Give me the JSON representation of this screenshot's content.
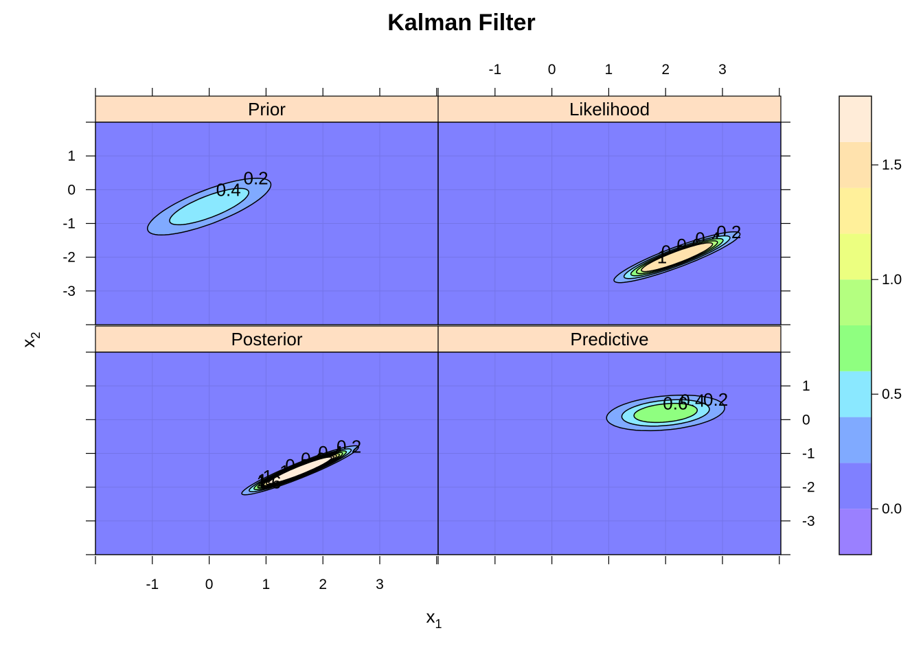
{
  "chart_data": {
    "type": "contour",
    "title": "Kalman Filter",
    "xlabel": "x",
    "xlabel_sub": "1",
    "ylabel": "x",
    "ylabel_sub": "2",
    "xlim": [
      -2,
      4
    ],
    "ylim": [
      -4,
      2
    ],
    "x_ticks": [
      -1,
      0,
      1,
      2,
      3
    ],
    "y_ticks": [
      -3,
      -2,
      -1,
      0,
      1
    ],
    "grid": true,
    "colorbar": {
      "ticks": [
        0.0,
        0.5,
        1.0,
        1.5
      ],
      "tick_labels": [
        "0.0",
        "0.5",
        "1.0",
        "1.5"
      ],
      "range": [
        -0.2,
        1.8
      ],
      "bands": [
        {
          "from": -0.2,
          "to": 0.0,
          "color": "#9a80ff"
        },
        {
          "from": 0.0,
          "to": 0.2,
          "color": "#8080ff"
        },
        {
          "from": 0.2,
          "to": 0.4,
          "color": "#80aaff"
        },
        {
          "from": 0.4,
          "to": 0.6,
          "color": "#8ae8ff"
        },
        {
          "from": 0.6,
          "to": 0.8,
          "color": "#8fff80"
        },
        {
          "from": 0.8,
          "to": 1.0,
          "color": "#b4ff80"
        },
        {
          "from": 1.0,
          "to": 1.2,
          "color": "#ecff80"
        },
        {
          "from": 1.2,
          "to": 1.4,
          "color": "#fff09a"
        },
        {
          "from": 1.4,
          "to": 1.6,
          "color": "#ffe2ad"
        },
        {
          "from": 1.6,
          "to": 1.8,
          "color": "#ffecd8"
        }
      ]
    },
    "panels": [
      {
        "name": "Prior",
        "mean": [
          0.0,
          -0.5
        ],
        "cov": [
          [
            0.5,
            0.3
          ],
          [
            0.3,
            0.3
          ]
        ],
        "contours": [
          0.2,
          0.4
        ]
      },
      {
        "name": "Likelihood",
        "mean": [
          2.2,
          -2.0
        ],
        "cov": [
          [
            0.26,
            0.16
          ],
          [
            0.16,
            0.12
          ]
        ],
        "contours": [
          0.2,
          0.4,
          0.6,
          0.8,
          1.0
        ]
      },
      {
        "name": "Posterior",
        "mean": [
          1.6,
          -1.5
        ],
        "cov": [
          [
            0.18,
            0.12
          ],
          [
            0.12,
            0.09
          ]
        ],
        "contours": [
          0.2,
          0.4,
          0.6,
          0.8,
          1.0,
          1.2,
          1.4,
          1.6
        ]
      },
      {
        "name": "Predictive",
        "mean": [
          2.0,
          0.2
        ],
        "cov": [
          [
            0.35,
            0.05
          ],
          [
            0.05,
            0.09
          ]
        ],
        "contours": [
          0.2,
          0.4,
          0.6
        ]
      }
    ]
  }
}
